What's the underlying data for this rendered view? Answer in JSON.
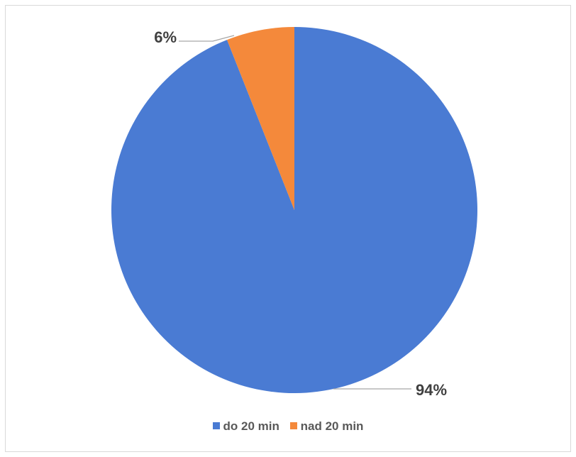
{
  "chart_data": {
    "type": "pie",
    "categories": [
      "do 20 min",
      "nad 20 min"
    ],
    "values": [
      94,
      6
    ],
    "labels": [
      "94%",
      "6%"
    ],
    "colors": [
      "#4a7bd3",
      "#f4893b"
    ],
    "title": "",
    "legend_placement": "bottom"
  }
}
